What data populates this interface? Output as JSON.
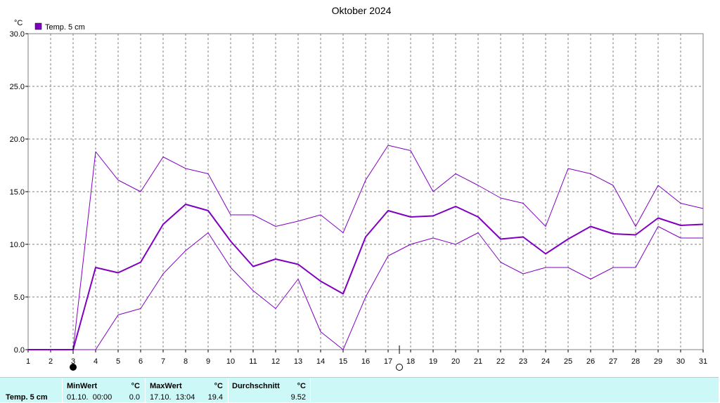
{
  "chart_data": {
    "type": "line",
    "title": "Oktober 2024",
    "ylabel": "°C",
    "legend": "Temp. 5 cm",
    "legend_position": "top-left",
    "grid": true,
    "xlim": [
      1,
      31
    ],
    "ylim": [
      0,
      30
    ],
    "x_ticks": [
      "1",
      "2",
      "3",
      "4",
      "5",
      "6",
      "7",
      "8",
      "9",
      "10",
      "11",
      "12",
      "13",
      "14",
      "15",
      "16",
      "17",
      "18",
      "19",
      "20",
      "21",
      "22",
      "23",
      "24",
      "25",
      "26",
      "27",
      "28",
      "29",
      "30",
      "31"
    ],
    "y_ticks": [
      "0.0",
      "5.0",
      "10.0",
      "15.0",
      "20.0",
      "25.0",
      "30.0"
    ],
    "moon_markers": [
      {
        "day": 3,
        "phase": "new-moon"
      },
      {
        "day": 17.5,
        "phase": "full-moon"
      }
    ],
    "series": [
      {
        "role": "max",
        "color": "#8000c0",
        "x": [
          1,
          2,
          3,
          4,
          5,
          6,
          7,
          8,
          9,
          10,
          11,
          12,
          13,
          14,
          15,
          16,
          17,
          18,
          19,
          20,
          21,
          22,
          23,
          24,
          25,
          26,
          27,
          28,
          29,
          30,
          31
        ],
        "values": [
          0,
          0,
          0,
          18.8,
          16.1,
          15.0,
          18.3,
          17.2,
          16.7,
          12.8,
          12.8,
          11.7,
          12.2,
          12.8,
          11.1,
          16.1,
          19.4,
          18.9,
          15.0,
          16.7,
          15.6,
          14.4,
          13.9,
          11.7,
          17.2,
          16.7,
          15.6,
          11.7,
          15.6,
          13.9,
          13.4
        ]
      },
      {
        "role": "mean",
        "color": "#8000c0",
        "x": [
          1,
          2,
          3,
          4,
          5,
          6,
          7,
          8,
          9,
          10,
          11,
          12,
          13,
          14,
          15,
          16,
          17,
          18,
          19,
          20,
          21,
          22,
          23,
          24,
          25,
          26,
          27,
          28,
          29,
          30,
          31
        ],
        "values": [
          0,
          0,
          0,
          7.8,
          7.3,
          8.3,
          11.9,
          13.8,
          13.2,
          10.3,
          7.9,
          8.6,
          8.1,
          6.5,
          5.3,
          10.7,
          13.2,
          12.6,
          12.7,
          13.6,
          12.6,
          10.5,
          10.7,
          9.1,
          10.5,
          11.7,
          11.0,
          10.9,
          12.5,
          11.8,
          11.9
        ]
      },
      {
        "role": "min",
        "color": "#8000c0",
        "x": [
          1,
          2,
          3,
          4,
          5,
          6,
          7,
          8,
          9,
          10,
          11,
          12,
          13,
          14,
          15,
          16,
          17,
          18,
          19,
          20,
          21,
          22,
          23,
          24,
          25,
          26,
          27,
          28,
          29,
          30,
          31
        ],
        "values": [
          0,
          0,
          0,
          0,
          3.3,
          3.9,
          7.2,
          9.4,
          11.1,
          7.8,
          5.6,
          3.9,
          6.7,
          1.7,
          0,
          5.0,
          8.9,
          10.0,
          10.6,
          10.0,
          11.1,
          8.3,
          7.2,
          7.8,
          7.8,
          6.7,
          7.8,
          7.8,
          11.7,
          10.6,
          10.6
        ]
      }
    ]
  },
  "stats": {
    "sensor_label": "Temp. 5 cm",
    "min": {
      "header": "MinWert",
      "unit": "°C",
      "date": "01.10.  00:00",
      "value": "0.0"
    },
    "max": {
      "header": "MaxWert",
      "unit": "°C",
      "date": "17.10.  13:04",
      "value": "19.4"
    },
    "avg": {
      "header": "Durchschnitt",
      "unit": "°C",
      "value": "9.52"
    }
  }
}
